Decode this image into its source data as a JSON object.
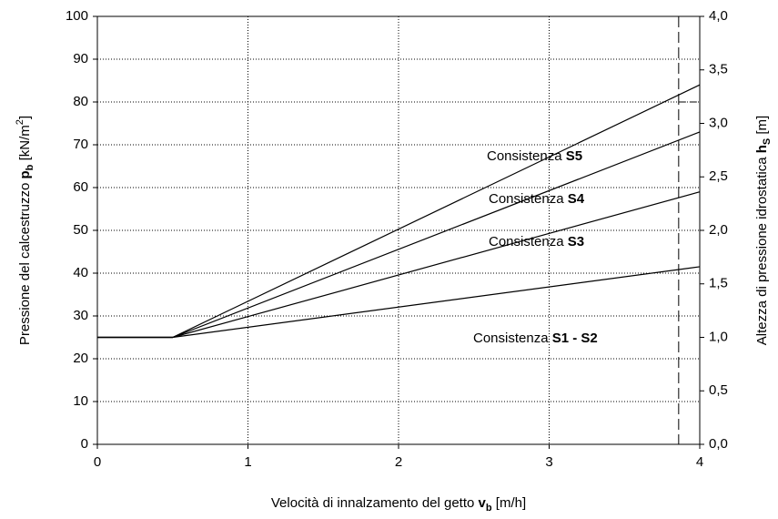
{
  "chart_data": {
    "type": "line",
    "xlabel": {
      "text": "Velocità di innalzamento del getto",
      "symbol": "v",
      "sub": "b",
      "unit": "[m/h]"
    },
    "ylabel": {
      "text": "Pressione del calcestruzzo",
      "symbol": "p",
      "sub": "b",
      "unit": "[kN/m",
      "sup": "2",
      "end": "]"
    },
    "y2label": {
      "text": "Altezza di pressione idrostatica",
      "symbol": "h",
      "sub": "S",
      "unit": "[m]"
    },
    "x": [
      0,
      0.5,
      4
    ],
    "series": [
      {
        "name": "Consistenza",
        "grade": "S5",
        "color": "#000000",
        "values": [
          25,
          25,
          84
        ]
      },
      {
        "name": "Consistenza",
        "grade": "S4",
        "color": "#000000",
        "values": [
          25,
          25,
          73
        ]
      },
      {
        "name": "Consistenza",
        "grade": "S3",
        "color": "#000000",
        "values": [
          25,
          25,
          59
        ]
      },
      {
        "name": "Consistenza",
        "grade": "S1 -  S2",
        "color": "#000000",
        "values": [
          25,
          25,
          41.5
        ]
      }
    ],
    "xlim": [
      0,
      4
    ],
    "xticks": [
      0,
      1,
      2,
      3,
      4
    ],
    "ylim": [
      0,
      100
    ],
    "yticks": [
      0,
      10,
      20,
      30,
      40,
      50,
      60,
      70,
      80,
      90,
      100
    ],
    "y2lim": [
      0,
      4
    ],
    "y2ticks": [
      {
        "value": 0,
        "label": "0,0"
      },
      {
        "value": 0.5,
        "label": "0,5"
      },
      {
        "value": 1,
        "label": "1,0"
      },
      {
        "value": 1.5,
        "label": "1,5"
      },
      {
        "value": 2,
        "label": "2,0"
      },
      {
        "value": 2.5,
        "label": "2,5"
      },
      {
        "value": 3,
        "label": "3,0"
      },
      {
        "value": 3.5,
        "label": "3,5"
      },
      {
        "value": 4,
        "label": "4,0"
      }
    ],
    "vline": 3.86,
    "hline": {
      "y": 80,
      "x": [
        3.86,
        4
      ]
    },
    "grid": true
  }
}
